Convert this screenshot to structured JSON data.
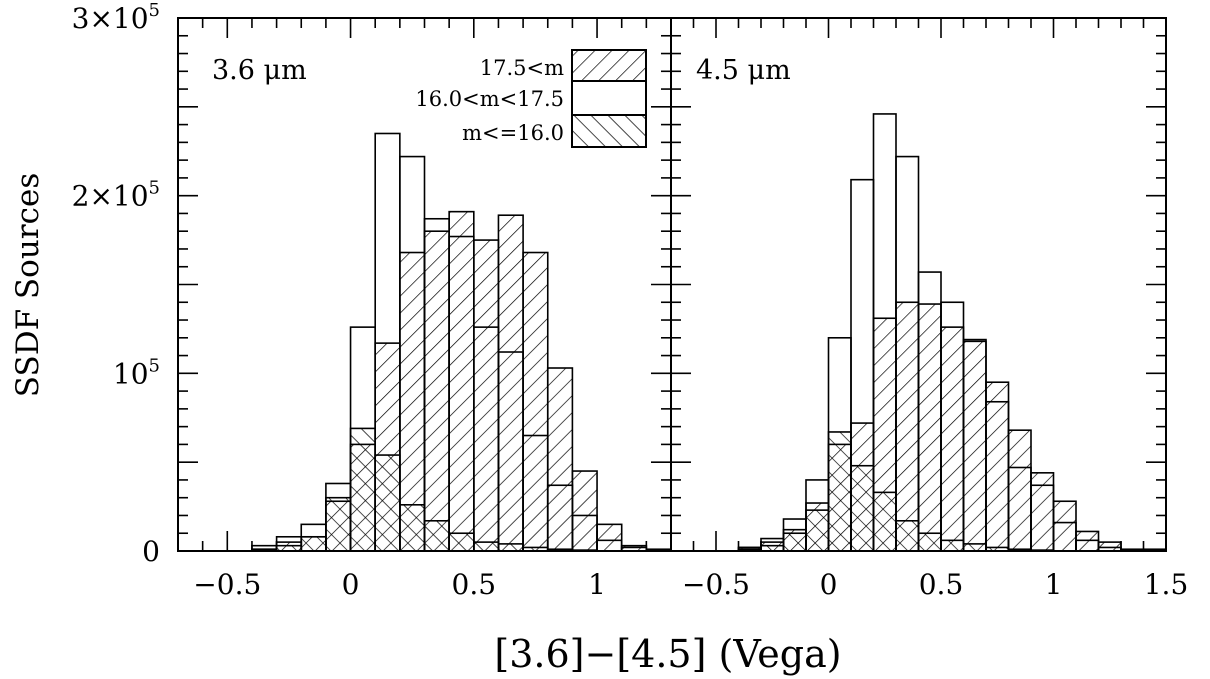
{
  "chart_data": {
    "type": "histogram",
    "xlabel": "[3.6]−[4.5] (Vega)",
    "ylabel": "SSDF Sources",
    "y_ticks": [
      {
        "value": 0,
        "base": "0",
        "exp": ""
      },
      {
        "value": 100000,
        "base": "10",
        "exp": "5"
      },
      {
        "value": 200000,
        "base": "2×10",
        "exp": "5"
      },
      {
        "value": 300000,
        "base": "3×10",
        "exp": "5"
      }
    ],
    "legend": [
      {
        "label": "17.5<m",
        "hatch": "diag-right"
      },
      {
        "label": "16.0<m<17.5",
        "hatch": "none"
      },
      {
        "label": "m<=16.0",
        "hatch": "diag-left"
      }
    ],
    "panels": [
      {
        "label": "3.6 μm",
        "xlim": [
          -0.7,
          1.3
        ],
        "ylim": [
          0,
          300000
        ],
        "x_ticks": [
          "−0.5",
          "0",
          "0.5",
          "1"
        ],
        "x_tick_values": [
          -0.5,
          0,
          0.5,
          1
        ],
        "bin_edges": [
          -0.5,
          -0.4,
          -0.3,
          -0.2,
          -0.1,
          0.0,
          0.1,
          0.2,
          0.3,
          0.4,
          0.5,
          0.6,
          0.7,
          0.8,
          0.9,
          1.0,
          1.1,
          1.2,
          1.3
        ],
        "series": [
          {
            "name": "17.5<m",
            "hatch": "diag-right",
            "values": [
              0,
              1000,
              5000,
              8000,
              28000,
              60000,
              117000,
              168000,
              180000,
              191000,
              175000,
              189000,
              168000,
              103000,
              45000,
              15000,
              3000,
              1000
            ]
          },
          {
            "name": "16.0<m<17.5",
            "hatch": "none",
            "values": [
              0,
              3000,
              8000,
              15000,
              38000,
              126000,
              235000,
              222000,
              187000,
              177000,
              126000,
              112000,
              65000,
              37000,
              20000,
              6000,
              2000,
              0
            ]
          },
          {
            "name": "m<=16.0",
            "hatch": "diag-left",
            "values": [
              0,
              1000,
              3000,
              8000,
              30000,
              69000,
              54000,
              26000,
              17000,
              10000,
              5000,
              4000,
              2000,
              1000,
              500,
              0,
              0,
              0
            ]
          }
        ]
      },
      {
        "label": "4.5 μm",
        "xlim": [
          -0.7,
          1.5
        ],
        "ylim": [
          0,
          300000
        ],
        "x_ticks": [
          "−0.5",
          "0",
          "0.5",
          "1",
          "1.5"
        ],
        "x_tick_values": [
          -0.5,
          0,
          0.5,
          1,
          1.5
        ],
        "bin_edges": [
          -0.4,
          -0.3,
          -0.2,
          -0.1,
          0.0,
          0.1,
          0.2,
          0.3,
          0.4,
          0.5,
          0.6,
          0.7,
          0.8,
          0.9,
          1.0,
          1.1,
          1.2,
          1.3,
          1.4,
          1.5
        ],
        "series": [
          {
            "name": "17.5<m",
            "hatch": "diag-right",
            "values": [
              2000,
              5000,
              12000,
              27000,
              60000,
              72000,
              131000,
              140000,
              139000,
              126000,
              118000,
              95000,
              68000,
              44000,
              28000,
              11000,
              5000,
              1000,
              1000
            ]
          },
          {
            "name": "16.0<m<17.5",
            "hatch": "none",
            "values": [
              2000,
              7000,
              18000,
              40000,
              120000,
              209000,
              246000,
              222000,
              157000,
              140000,
              119000,
              84000,
              47000,
              37000,
              16000,
              6000,
              2000,
              500,
              0
            ]
          },
          {
            "name": "m<=16.0",
            "hatch": "diag-left",
            "values": [
              1000,
              3000,
              10000,
              23000,
              67000,
              48000,
              33000,
              17000,
              10000,
              6000,
              4000,
              2000,
              1000,
              500,
              0,
              0,
              0,
              0,
              0
            ]
          }
        ]
      }
    ]
  }
}
